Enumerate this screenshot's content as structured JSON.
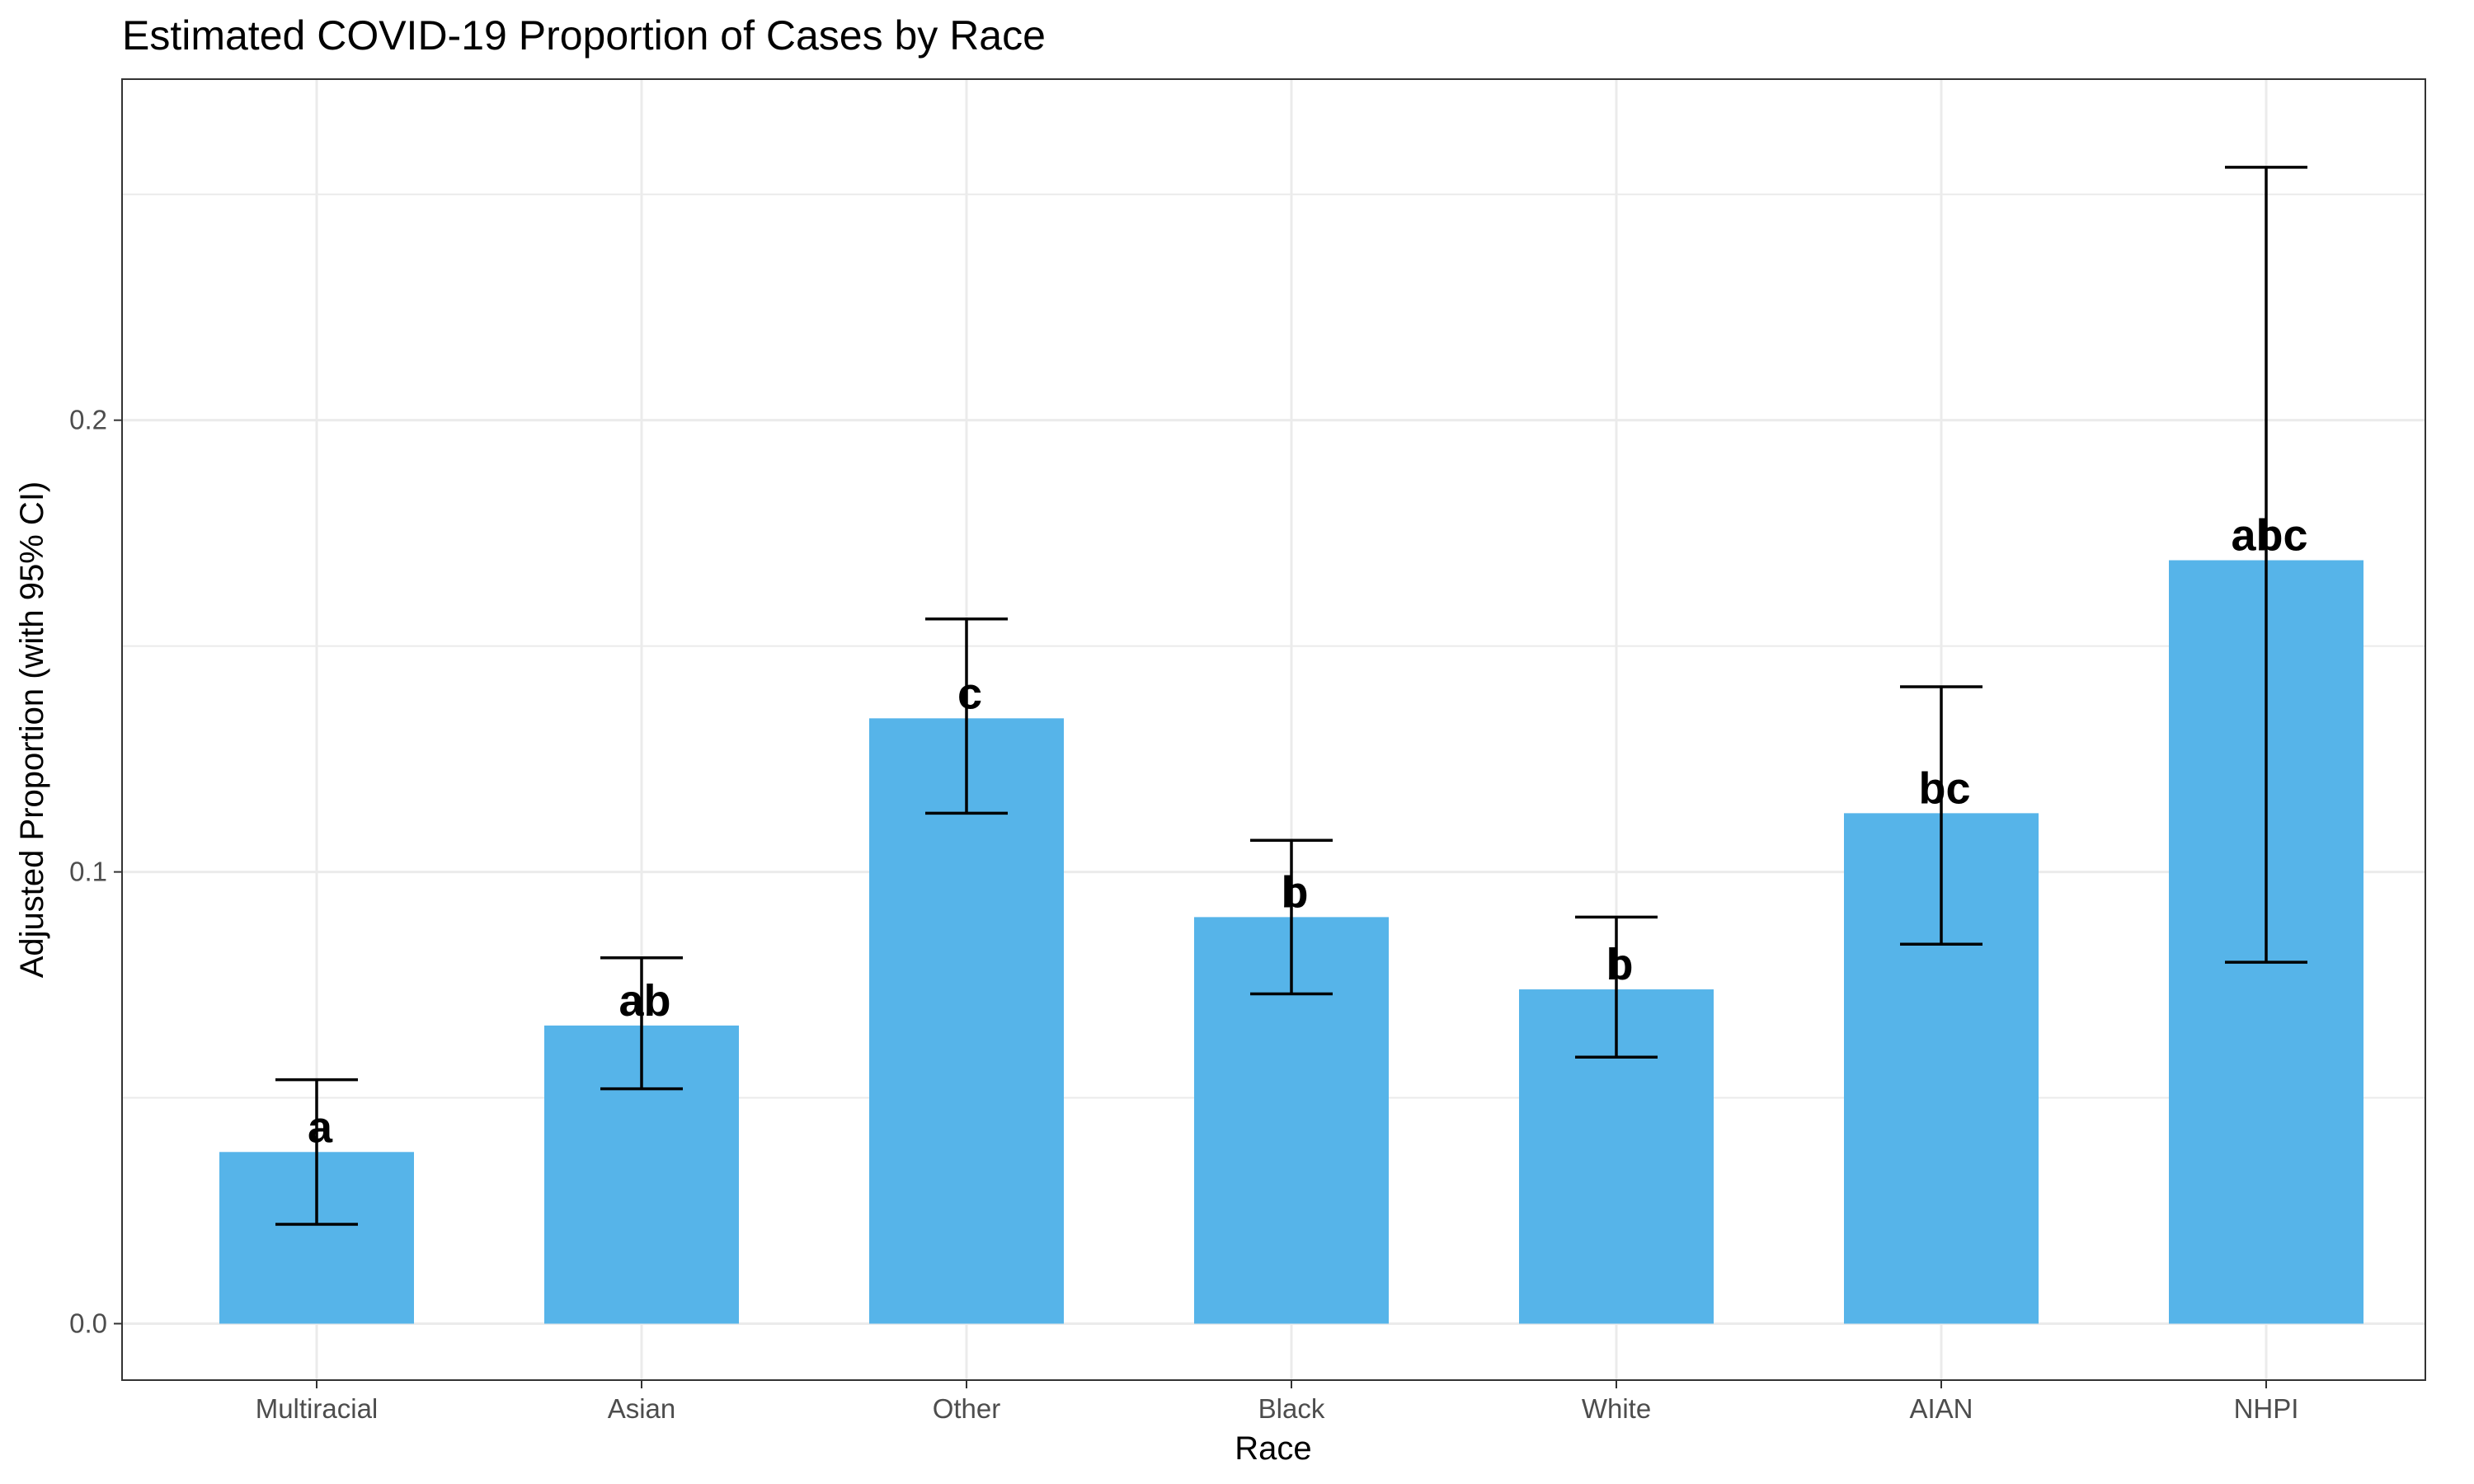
{
  "chart_data": {
    "type": "bar",
    "title": "Estimated COVID-19 Proportion of Cases by Race",
    "xlabel": "Race",
    "ylabel": "Adjusted Proportion (with 95% CI)",
    "categories": [
      "Multiracial",
      "Asian",
      "Other",
      "Black",
      "White",
      "AIAN",
      "NHPI"
    ],
    "values": [
      0.038,
      0.066,
      0.134,
      0.09,
      0.074,
      0.113,
      0.169
    ],
    "ci_lower": [
      0.022,
      0.052,
      0.113,
      0.073,
      0.059,
      0.084,
      0.08
    ],
    "ci_upper": [
      0.054,
      0.081,
      0.156,
      0.107,
      0.09,
      0.141,
      0.256
    ],
    "group_labels": [
      "a",
      "ab",
      "c",
      "b",
      "b",
      "bc",
      "abc"
    ],
    "yticks": [
      "0.0",
      "0.1",
      "0.2"
    ],
    "ytick_values": [
      0.0,
      0.1,
      0.2
    ],
    "ylim": [
      -0.0125,
      0.2755
    ],
    "grid": true,
    "legend": "none",
    "colors": {
      "bar": "#56B4E9",
      "error_bar": "#000000",
      "grid": "#ebebeb",
      "panel_border": "#333333"
    }
  }
}
